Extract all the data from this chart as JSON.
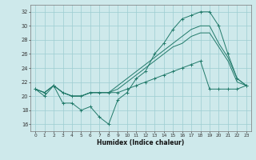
{
  "x": [
    0,
    1,
    2,
    3,
    4,
    5,
    6,
    7,
    8,
    9,
    10,
    11,
    12,
    13,
    14,
    15,
    16,
    17,
    18,
    19,
    20,
    21,
    22,
    23
  ],
  "line_top": [
    21,
    20,
    21.5,
    19.0,
    19.0,
    18.0,
    18.5,
    17.0,
    16.0,
    19.5,
    20.5,
    22.5,
    23.5,
    26.0,
    27.5,
    29.5,
    31.0,
    31.5,
    32.0,
    32.0,
    30.0,
    26.0,
    22.5,
    21.5
  ],
  "line_mid_upper": [
    21,
    20.5,
    21.5,
    20.5,
    20.0,
    20.0,
    20.5,
    20.5,
    20.5,
    21.5,
    22.5,
    23.5,
    24.5,
    25.5,
    26.5,
    27.5,
    28.5,
    29.5,
    30.0,
    30.0,
    27.5,
    25.5,
    22.5,
    21.5
  ],
  "line_mid_lower": [
    21,
    20.5,
    21.5,
    20.5,
    20.0,
    20.0,
    20.5,
    20.5,
    20.5,
    21.0,
    22.0,
    23.0,
    24.0,
    25.0,
    26.0,
    27.0,
    27.5,
    28.5,
    29.0,
    29.0,
    27.0,
    25.0,
    22.0,
    21.5
  ],
  "line_bottom": [
    21,
    20.5,
    21.5,
    20.5,
    20.0,
    20.0,
    20.5,
    20.5,
    20.5,
    20.5,
    21.0,
    21.5,
    22.0,
    22.5,
    23.0,
    23.5,
    24.0,
    24.5,
    25.0,
    21.0,
    21.0,
    21.0,
    21.0,
    21.5
  ],
  "color": "#217a6a",
  "bg_color": "#cee9eb",
  "grid_color": "#9dcdd1",
  "xlabel": "Humidex (Indice chaleur)",
  "ylim": [
    15,
    33
  ],
  "xlim": [
    -0.5,
    23.5
  ],
  "yticks": [
    16,
    18,
    20,
    22,
    24,
    26,
    28,
    30,
    32
  ],
  "xticks": [
    0,
    1,
    2,
    3,
    4,
    5,
    6,
    7,
    8,
    9,
    10,
    11,
    12,
    13,
    14,
    15,
    16,
    17,
    18,
    19,
    20,
    21,
    22,
    23
  ]
}
